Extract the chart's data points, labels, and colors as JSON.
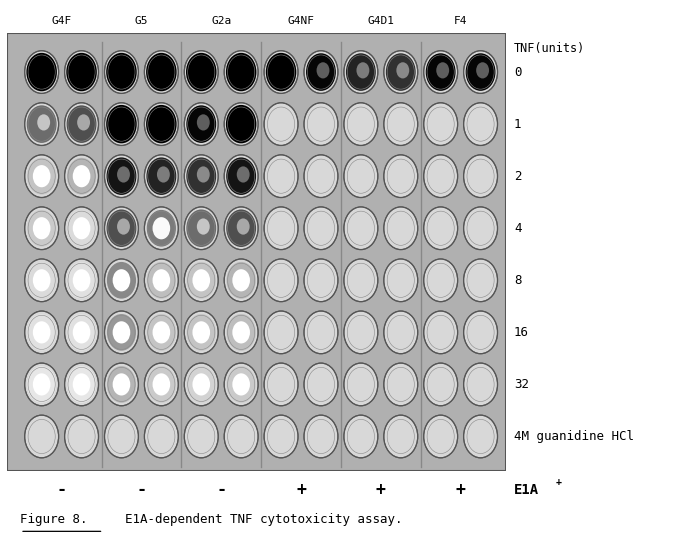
{
  "col_labels": [
    "G4F",
    "G5",
    "G2a",
    "G4NF",
    "G4D1",
    "F4"
  ],
  "row_labels": [
    "0",
    "1",
    "2",
    "4",
    "8",
    "16",
    "32",
    "4M guanidine HCl"
  ],
  "eia_labels": [
    "-",
    "-",
    "-",
    "+",
    "+",
    "+"
  ],
  "tnf_label": "TNF(units)",
  "figure_label": "Figure 8.",
  "figure_caption": "  E1A-dependent TNF cytotoxicity assay.",
  "bg_color": "#ffffff",
  "plate_bg": "#aaaaaa",
  "n_cols": 12,
  "n_rows": 8,
  "fill_levels": [
    [
      1.0,
      1.0,
      1.0,
      1.0,
      1.0,
      1.0,
      0.9,
      0.85,
      0.75,
      0.7,
      0.85,
      0.85
    ],
    [
      0.5,
      0.6,
      0.9,
      0.9,
      0.85,
      0.9,
      0.05,
      0.05,
      0.05,
      0.05,
      0.05,
      0.05
    ],
    [
      0.2,
      0.25,
      0.8,
      0.75,
      0.7,
      0.8,
      0.05,
      0.05,
      0.05,
      0.05,
      0.05,
      0.05
    ],
    [
      0.18,
      0.12,
      0.6,
      0.45,
      0.5,
      0.6,
      0.05,
      0.05,
      0.05,
      0.05,
      0.05,
      0.05
    ],
    [
      0.12,
      0.1,
      0.4,
      0.22,
      0.2,
      0.25,
      0.05,
      0.05,
      0.05,
      0.05,
      0.05,
      0.05
    ],
    [
      0.1,
      0.1,
      0.35,
      0.2,
      0.2,
      0.22,
      0.05,
      0.05,
      0.05,
      0.05,
      0.05,
      0.05
    ],
    [
      0.08,
      0.08,
      0.25,
      0.18,
      0.15,
      0.18,
      0.05,
      0.05,
      0.05,
      0.05,
      0.05,
      0.05
    ],
    [
      0.05,
      0.05,
      0.05,
      0.05,
      0.05,
      0.05,
      0.05,
      0.05,
      0.05,
      0.05,
      0.05,
      0.05
    ]
  ]
}
